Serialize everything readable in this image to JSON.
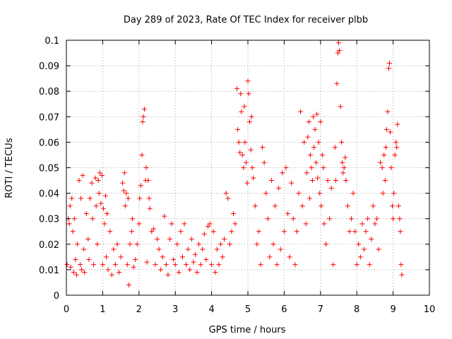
{
  "chart_data": {
    "type": "scatter",
    "title": "Day 289 of 2023, Rate Of TEC Index for receiver plbb",
    "xlabel": "GPS time / hours",
    "ylabel": "ROTI / TECUs",
    "xlim": [
      0,
      10
    ],
    "ylim": [
      0,
      0.1
    ],
    "x_ticks": [
      "0",
      "1",
      "2",
      "3",
      "4",
      "5",
      "6",
      "7",
      "8",
      "9",
      "10"
    ],
    "y_ticks": [
      "0",
      "0.01",
      "0.02",
      "0.03",
      "0.04",
      "0.05",
      "0.06",
      "0.07",
      "0.08",
      "0.09",
      "0.1"
    ],
    "grid": true,
    "marker": "+",
    "series": [
      {
        "color": "#ff0000",
        "points": [
          [
            0.02,
            0.012
          ],
          [
            0.05,
            0.03
          ],
          [
            0.08,
            0.028
          ],
          [
            0.1,
            0.035
          ],
          [
            0.12,
            0.011
          ],
          [
            0.15,
            0.038
          ],
          [
            0.18,
            0.025
          ],
          [
            0.2,
            0.009
          ],
          [
            0.22,
            0.03
          ],
          [
            0.25,
            0.014
          ],
          [
            0.28,
            0.008
          ],
          [
            0.3,
            0.02
          ],
          [
            0.35,
            0.045
          ],
          [
            0.38,
            0.012
          ],
          [
            0.4,
            0.038
          ],
          [
            0.42,
            0.01
          ],
          [
            0.45,
            0.047
          ],
          [
            0.48,
            0.018
          ],
          [
            0.5,
            0.009
          ],
          [
            0.55,
            0.032
          ],
          [
            0.6,
            0.022
          ],
          [
            0.62,
            0.014
          ],
          [
            0.65,
            0.038
          ],
          [
            0.7,
            0.044
          ],
          [
            0.72,
            0.03
          ],
          [
            0.75,
            0.012
          ],
          [
            0.8,
            0.046
          ],
          [
            0.82,
            0.035
          ],
          [
            0.85,
            0.02
          ],
          [
            0.88,
            0.045
          ],
          [
            0.9,
            0.04
          ],
          [
            0.92,
            0.048
          ],
          [
            0.95,
            0.036
          ],
          [
            0.98,
            0.047
          ],
          [
            1.0,
            0.012
          ],
          [
            1.02,
            0.034
          ],
          [
            1.05,
            0.028
          ],
          [
            1.08,
            0.039
          ],
          [
            1.1,
            0.015
          ],
          [
            1.12,
            0.032
          ],
          [
            1.15,
            0.01
          ],
          [
            1.2,
            0.025
          ],
          [
            1.25,
            0.008
          ],
          [
            1.3,
            0.018
          ],
          [
            1.35,
            0.012
          ],
          [
            1.4,
            0.02
          ],
          [
            1.45,
            0.009
          ],
          [
            1.5,
            0.015
          ],
          [
            1.55,
            0.044
          ],
          [
            1.58,
            0.041
          ],
          [
            1.6,
            0.048
          ],
          [
            1.62,
            0.035
          ],
          [
            1.65,
            0.04
          ],
          [
            1.68,
            0.012
          ],
          [
            1.7,
            0.038
          ],
          [
            1.72,
            0.004
          ],
          [
            1.75,
            0.02
          ],
          [
            1.8,
            0.025
          ],
          [
            1.82,
            0.03
          ],
          [
            1.85,
            0.011
          ],
          [
            1.9,
            0.014
          ],
          [
            1.95,
            0.02
          ],
          [
            2.0,
            0.028
          ],
          [
            2.02,
            0.038
          ],
          [
            2.05,
            0.043
          ],
          [
            2.08,
            0.055
          ],
          [
            2.1,
            0.068
          ],
          [
            2.12,
            0.07
          ],
          [
            2.15,
            0.073
          ],
          [
            2.18,
            0.045
          ],
          [
            2.2,
            0.05
          ],
          [
            2.22,
            0.013
          ],
          [
            2.25,
            0.045
          ],
          [
            2.28,
            0.038
          ],
          [
            2.3,
            0.034
          ],
          [
            2.35,
            0.025
          ],
          [
            2.4,
            0.026
          ],
          [
            2.45,
            0.012
          ],
          [
            2.5,
            0.022
          ],
          [
            2.55,
            0.018
          ],
          [
            2.6,
            0.01
          ],
          [
            2.65,
            0.015
          ],
          [
            2.7,
            0.031
          ],
          [
            2.75,
            0.012
          ],
          [
            2.8,
            0.008
          ],
          [
            2.85,
            0.022
          ],
          [
            2.9,
            0.028
          ],
          [
            2.95,
            0.014
          ],
          [
            3.0,
            0.012
          ],
          [
            3.05,
            0.02
          ],
          [
            3.1,
            0.009
          ],
          [
            3.15,
            0.025
          ],
          [
            3.2,
            0.015
          ],
          [
            3.25,
            0.028
          ],
          [
            3.3,
            0.012
          ],
          [
            3.35,
            0.018
          ],
          [
            3.4,
            0.01
          ],
          [
            3.45,
            0.022
          ],
          [
            3.5,
            0.013
          ],
          [
            3.55,
            0.016
          ],
          [
            3.6,
            0.009
          ],
          [
            3.65,
            0.02
          ],
          [
            3.7,
            0.012
          ],
          [
            3.75,
            0.018
          ],
          [
            3.8,
            0.024
          ],
          [
            3.85,
            0.014
          ],
          [
            3.9,
            0.027
          ],
          [
            3.95,
            0.028
          ],
          [
            4.0,
            0.012
          ],
          [
            4.05,
            0.025
          ],
          [
            4.1,
            0.009
          ],
          [
            4.15,
            0.018
          ],
          [
            4.2,
            0.012
          ],
          [
            4.25,
            0.02
          ],
          [
            4.3,
            0.015
          ],
          [
            4.35,
            0.022
          ],
          [
            4.4,
            0.04
          ],
          [
            4.45,
            0.038
          ],
          [
            4.5,
            0.02
          ],
          [
            4.55,
            0.025
          ],
          [
            4.6,
            0.032
          ],
          [
            4.65,
            0.028
          ],
          [
            4.7,
            0.081
          ],
          [
            4.72,
            0.065
          ],
          [
            4.75,
            0.06
          ],
          [
            4.78,
            0.056
          ],
          [
            4.8,
            0.079
          ],
          [
            4.82,
            0.072
          ],
          [
            4.85,
            0.055
          ],
          [
            4.88,
            0.05
          ],
          [
            4.9,
            0.074
          ],
          [
            4.92,
            0.06
          ],
          [
            4.95,
            0.052
          ],
          [
            4.98,
            0.044
          ],
          [
            5.0,
            0.084
          ],
          [
            5.02,
            0.079
          ],
          [
            5.05,
            0.068
          ],
          [
            5.08,
            0.057
          ],
          [
            5.1,
            0.07
          ],
          [
            5.12,
            0.05
          ],
          [
            5.15,
            0.046
          ],
          [
            5.2,
            0.035
          ],
          [
            5.25,
            0.02
          ],
          [
            5.3,
            0.025
          ],
          [
            5.35,
            0.012
          ],
          [
            5.4,
            0.058
          ],
          [
            5.45,
            0.052
          ],
          [
            5.5,
            0.04
          ],
          [
            5.55,
            0.03
          ],
          [
            5.6,
            0.015
          ],
          [
            5.65,
            0.045
          ],
          [
            5.7,
            0.02
          ],
          [
            5.75,
            0.035
          ],
          [
            5.8,
            0.012
          ],
          [
            5.85,
            0.042
          ],
          [
            5.9,
            0.018
          ],
          [
            5.95,
            0.048
          ],
          [
            6.0,
            0.025
          ],
          [
            6.05,
            0.05
          ],
          [
            6.1,
            0.032
          ],
          [
            6.15,
            0.015
          ],
          [
            6.2,
            0.044
          ],
          [
            6.25,
            0.03
          ],
          [
            6.3,
            0.012
          ],
          [
            6.35,
            0.025
          ],
          [
            6.4,
            0.04
          ],
          [
            6.45,
            0.072
          ],
          [
            6.5,
            0.035
          ],
          [
            6.55,
            0.06
          ],
          [
            6.6,
            0.028
          ],
          [
            6.62,
            0.048
          ],
          [
            6.65,
            0.062
          ],
          [
            6.68,
            0.068
          ],
          [
            6.7,
            0.038
          ],
          [
            6.72,
            0.055
          ],
          [
            6.75,
            0.05
          ],
          [
            6.78,
            0.045
          ],
          [
            6.8,
            0.07
          ],
          [
            6.82,
            0.058
          ],
          [
            6.85,
            0.065
          ],
          [
            6.88,
            0.052
          ],
          [
            6.9,
            0.071
          ],
          [
            6.92,
            0.046
          ],
          [
            6.95,
            0.06
          ],
          [
            6.98,
            0.04
          ],
          [
            7.0,
            0.068
          ],
          [
            7.02,
            0.035
          ],
          [
            7.05,
            0.055
          ],
          [
            7.08,
            0.05
          ],
          [
            7.1,
            0.028
          ],
          [
            7.15,
            0.02
          ],
          [
            7.2,
            0.045
          ],
          [
            7.25,
            0.03
          ],
          [
            7.3,
            0.042
          ],
          [
            7.35,
            0.012
          ],
          [
            7.4,
            0.058
          ],
          [
            7.42,
            0.045
          ],
          [
            7.45,
            0.083
          ],
          [
            7.48,
            0.095
          ],
          [
            7.5,
            0.099
          ],
          [
            7.52,
            0.096
          ],
          [
            7.55,
            0.074
          ],
          [
            7.58,
            0.06
          ],
          [
            7.6,
            0.052
          ],
          [
            7.62,
            0.048
          ],
          [
            7.65,
            0.05
          ],
          [
            7.68,
            0.054
          ],
          [
            7.7,
            0.045
          ],
          [
            7.75,
            0.035
          ],
          [
            7.8,
            0.025
          ],
          [
            7.85,
            0.03
          ],
          [
            7.9,
            0.04
          ],
          [
            7.95,
            0.025
          ],
          [
            8.0,
            0.012
          ],
          [
            8.05,
            0.02
          ],
          [
            8.1,
            0.015
          ],
          [
            8.15,
            0.028
          ],
          [
            8.2,
            0.018
          ],
          [
            8.25,
            0.025
          ],
          [
            8.3,
            0.03
          ],
          [
            8.35,
            0.012
          ],
          [
            8.4,
            0.022
          ],
          [
            8.45,
            0.035
          ],
          [
            8.5,
            0.028
          ],
          [
            8.55,
            0.03
          ],
          [
            8.6,
            0.018
          ],
          [
            8.65,
            0.052
          ],
          [
            8.7,
            0.05
          ],
          [
            8.72,
            0.04
          ],
          [
            8.75,
            0.055
          ],
          [
            8.78,
            0.045
          ],
          [
            8.8,
            0.058
          ],
          [
            8.82,
            0.065
          ],
          [
            8.85,
            0.072
          ],
          [
            8.88,
            0.089
          ],
          [
            8.9,
            0.091
          ],
          [
            8.92,
            0.064
          ],
          [
            8.95,
            0.05
          ],
          [
            8.98,
            0.035
          ],
          [
            9.0,
            0.03
          ],
          [
            9.02,
            0.04
          ],
          [
            9.05,
            0.055
          ],
          [
            9.08,
            0.06
          ],
          [
            9.1,
            0.058
          ],
          [
            9.12,
            0.067
          ],
          [
            9.15,
            0.035
          ],
          [
            9.18,
            0.03
          ],
          [
            9.2,
            0.025
          ],
          [
            9.22,
            0.012
          ],
          [
            9.24,
            0.008
          ]
        ]
      }
    ]
  }
}
